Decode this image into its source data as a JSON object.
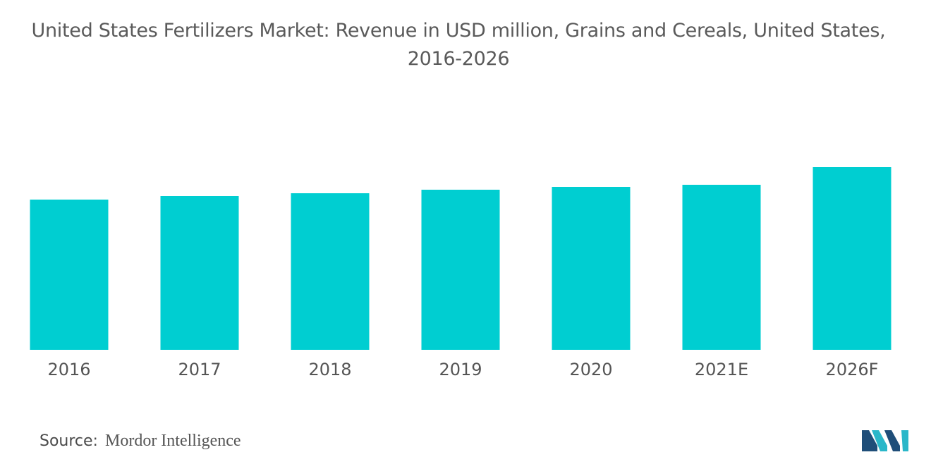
{
  "title_line1": "United States Fertilizers Market: Revenue in USD million, Grains and Cereals, United States,",
  "title_line2": "2016-2026",
  "source_label": "Source:",
  "source_name": "Mordor Intelligence",
  "colors": {
    "bar": "#00CED1",
    "logo_dark": "#1f4e79",
    "logo_teal": "#2ab7c9"
  },
  "chart_data": {
    "type": "bar",
    "title": "United States Fertilizers Market: Revenue in USD million, Grains and Cereals, United States, 2016-2026",
    "categories": [
      "2016",
      "2017",
      "2018",
      "2019",
      "2020",
      "2021E",
      "2026F"
    ],
    "values": [
      213,
      218,
      222,
      227,
      231,
      234,
      259
    ],
    "xlabel": "",
    "ylabel": "",
    "ylim": [
      0,
      300
    ],
    "grid": false,
    "legend": "none"
  }
}
